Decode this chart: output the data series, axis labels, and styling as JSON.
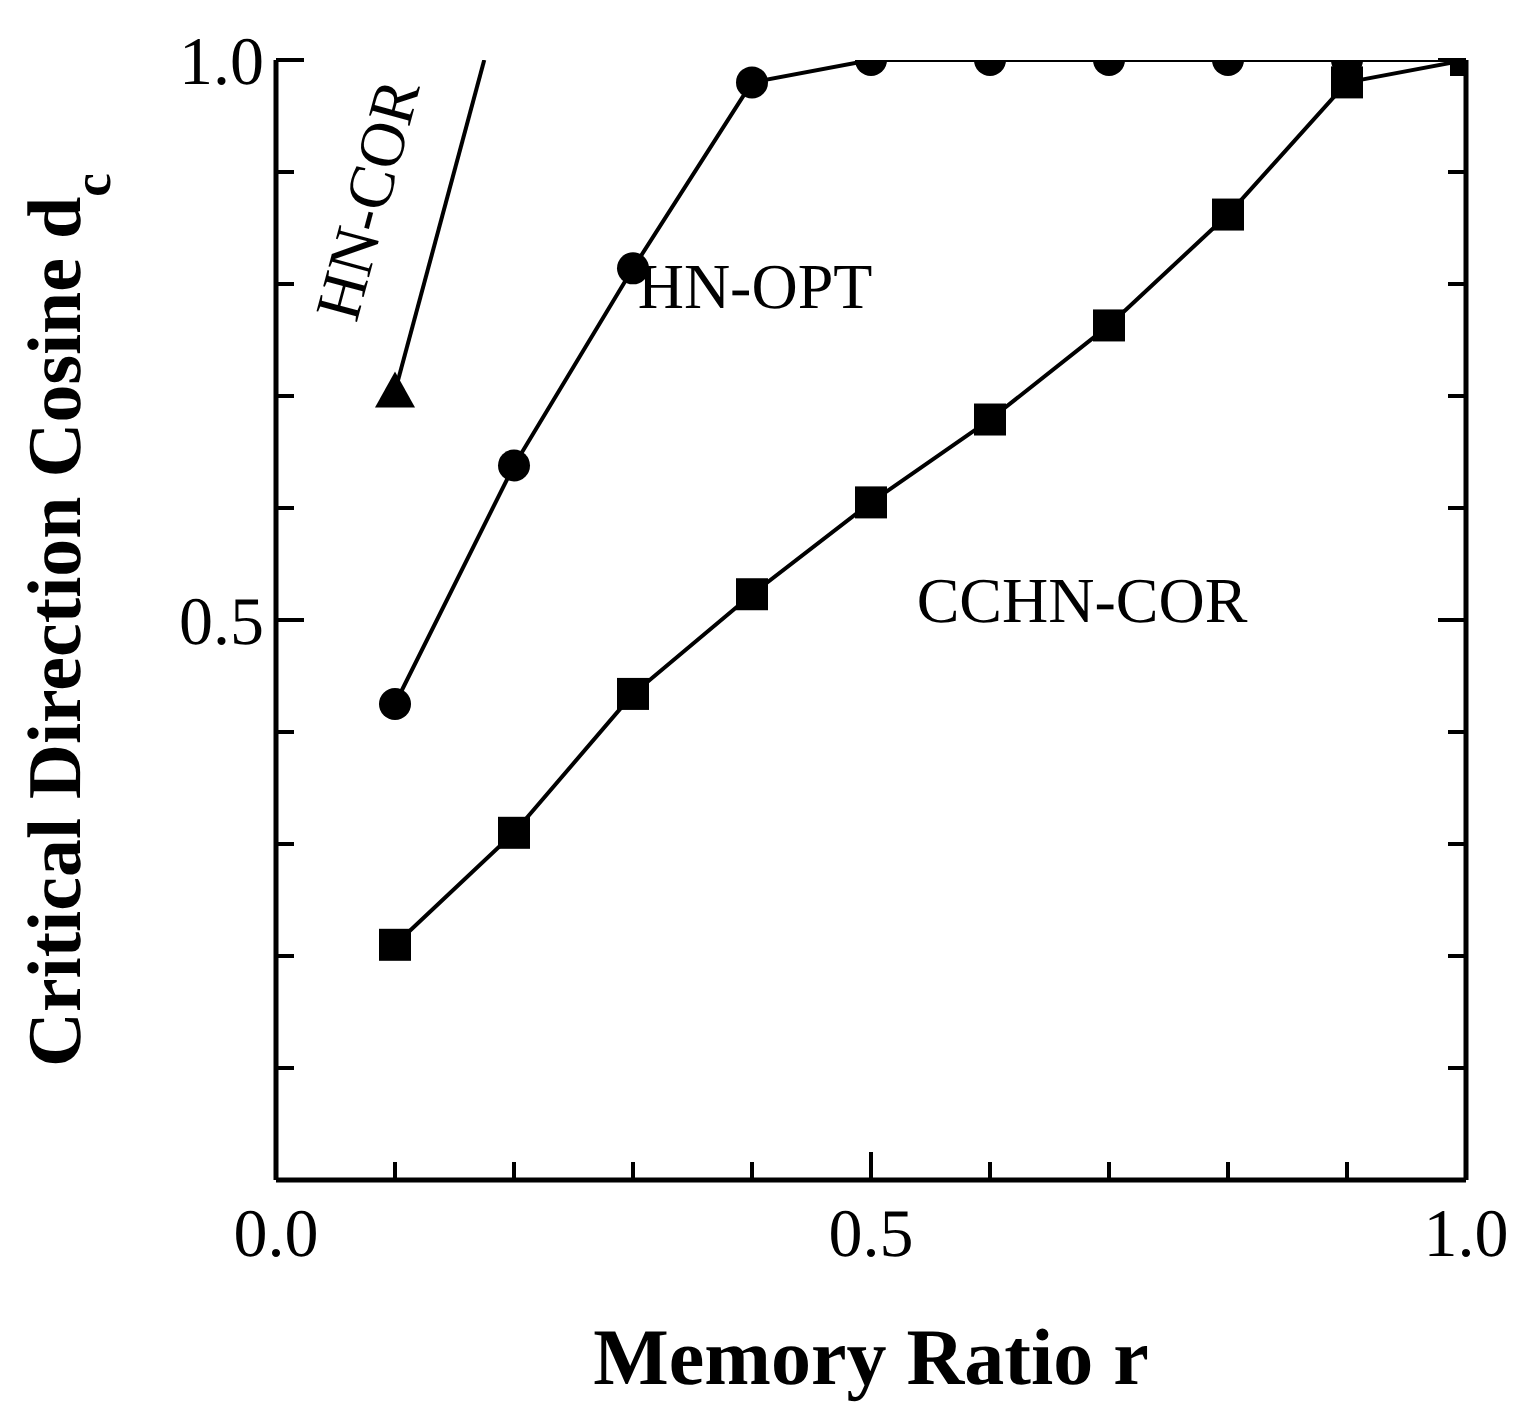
{
  "chart_data": {
    "type": "line",
    "xlabel": "Memory Ratio  r",
    "ylabel": "Critical Direction Cosine  d$_{c}$",
    "xlim": [
      0,
      1
    ],
    "ylim": [
      0,
      1
    ],
    "xticks": [
      {
        "value": 0,
        "label": "0.0"
      },
      {
        "value": 0.1,
        "label": null
      },
      {
        "value": 0.2,
        "label": null
      },
      {
        "value": 0.3,
        "label": null
      },
      {
        "value": 0.4,
        "label": null
      },
      {
        "value": 0.5,
        "label": "0.5"
      },
      {
        "value": 0.6,
        "label": null
      },
      {
        "value": 0.7,
        "label": null
      },
      {
        "value": 0.8,
        "label": null
      },
      {
        "value": 0.9,
        "label": null
      },
      {
        "value": 1,
        "label": "1.0"
      }
    ],
    "yticks": [
      {
        "value": 0,
        "label": null
      },
      {
        "value": 0.1,
        "label": null
      },
      {
        "value": 0.2,
        "label": null
      },
      {
        "value": 0.3,
        "label": null
      },
      {
        "value": 0.4,
        "label": null
      },
      {
        "value": 0.5,
        "label": "0.5"
      },
      {
        "value": 0.6,
        "label": null
      },
      {
        "value": 0.7,
        "label": null
      },
      {
        "value": 0.8,
        "label": null
      },
      {
        "value": 0.9,
        "label": null
      },
      {
        "value": 1,
        "label": "1.0"
      }
    ],
    "series": [
      {
        "color": "#000000",
        "marker": "none",
        "x": [
          0.1,
          0.175
        ],
        "values": [
          0.704,
          1.0
        ]
      },
      {
        "color": "#000000",
        "marker": "triangle",
        "x": [
          0.1
        ],
        "values": [
          0.704
        ]
      },
      {
        "color": "#000000",
        "marker": "circle",
        "x": [
          0.1,
          0.2,
          0.3,
          0.4,
          0.5,
          0.6,
          0.7,
          0.8,
          0.9,
          1.0
        ],
        "values": [
          0.425,
          0.638,
          0.814,
          0.98,
          1.0,
          1.0,
          1.0,
          1.0,
          1.0,
          1.0
        ]
      },
      {
        "color": "#000000",
        "marker": "square",
        "x": [
          0.1,
          0.2,
          0.3,
          0.4,
          0.5,
          0.6,
          0.7,
          0.8,
          0.9,
          1.0
        ],
        "values": [
          0.21,
          0.31,
          0.434,
          0.523,
          0.605,
          0.679,
          0.763,
          0.862,
          0.98,
          1.0
        ]
      }
    ],
    "annotations": [
      "HN-COR",
      "HN-OPT",
      "CCHN-COR"
    ]
  }
}
